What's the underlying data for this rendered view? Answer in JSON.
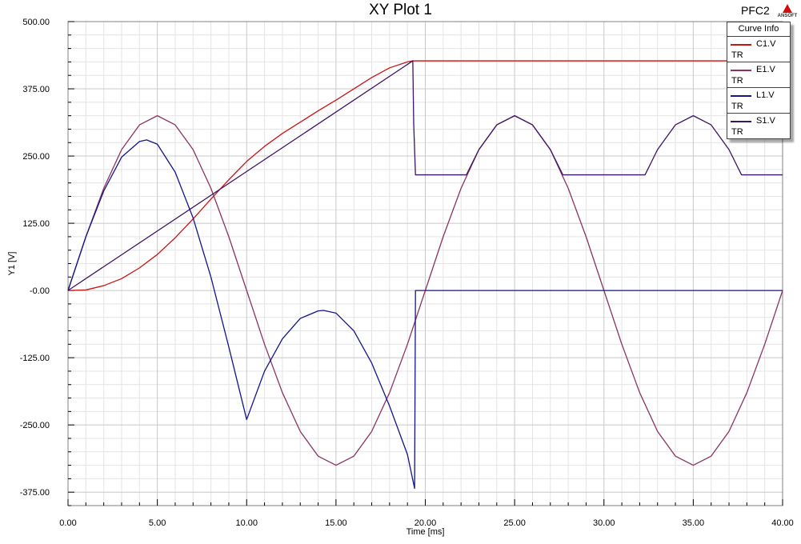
{
  "window": {
    "project": "PFC2",
    "logo_text": "ANSOFT"
  },
  "chart_data": {
    "type": "line",
    "title": "XY Plot 1",
    "xlabel": "Time [ms]",
    "ylabel": "Y1 [V]",
    "xlim": [
      0,
      40
    ],
    "ylim": [
      -400,
      500
    ],
    "x_ticks": [
      0,
      5,
      10,
      15,
      20,
      25,
      30,
      35,
      40
    ],
    "x_tick_labels": [
      "0.00",
      "5.00",
      "10.00",
      "15.00",
      "20.00",
      "25.00",
      "30.00",
      "35.00",
      "40.00"
    ],
    "y_ticks": [
      500,
      375,
      250,
      125,
      0,
      -125,
      -250,
      -375
    ],
    "y_tick_labels": [
      "500.00",
      "375.00",
      "250.00",
      "125.00",
      "-0.00",
      "-125.00",
      "-250.00",
      "-375.00"
    ],
    "grid": true,
    "legend": {
      "title": "Curve Info",
      "placement": "top-right"
    },
    "series": [
      {
        "name": "C1.V",
        "sweep": "TR",
        "color": "#c81414",
        "x": [
          0,
          1,
          2,
          3,
          4,
          5,
          6,
          7,
          8,
          9,
          10,
          11,
          12,
          13,
          14,
          15,
          16,
          17,
          18,
          19,
          19.3,
          20,
          25,
          30,
          35,
          40
        ],
        "y": [
          0,
          1,
          9,
          22,
          42,
          67,
          98,
          133,
          170,
          206,
          240,
          268,
          292,
          313,
          334,
          354,
          375,
          396,
          414,
          425,
          427,
          427,
          427,
          427,
          427,
          427
        ]
      },
      {
        "name": "E1.V",
        "sweep": "TR",
        "color": "#8a3264",
        "x": [
          0,
          1,
          2,
          3,
          4,
          5,
          6,
          7,
          8,
          9,
          10,
          11,
          12,
          13,
          14,
          15,
          16,
          17,
          18,
          19,
          20,
          21,
          22,
          23,
          24,
          25,
          26,
          27,
          28,
          29,
          30,
          31,
          32,
          33,
          34,
          35,
          36,
          37,
          38,
          39,
          40
        ],
        "y": [
          0,
          100,
          190,
          262,
          308,
          325,
          308,
          262,
          190,
          100,
          0,
          -100,
          -190,
          -262,
          -308,
          -325,
          -308,
          -262,
          -190,
          -100,
          0,
          100,
          190,
          262,
          308,
          325,
          308,
          262,
          190,
          100,
          0,
          -100,
          -190,
          -262,
          -308,
          -325,
          -308,
          -262,
          -190,
          -100,
          0
        ]
      },
      {
        "name": "L1.V",
        "sweep": "TR",
        "color": "#14148c",
        "x": [
          0,
          1,
          2,
          3,
          4,
          4.4,
          5,
          6,
          7,
          8,
          9,
          10,
          11,
          12,
          13,
          14,
          14.3,
          15,
          16,
          17,
          18,
          19,
          19.4,
          19.45,
          20,
          25,
          30,
          35,
          40
        ],
        "y": [
          0,
          100,
          185,
          248,
          277,
          280,
          272,
          220,
          135,
          25,
          -105,
          -240,
          -150,
          -90,
          -52,
          -38,
          -37,
          -42,
          -75,
          -135,
          -215,
          -305,
          -368,
          0,
          0,
          0,
          0,
          0,
          0
        ]
      },
      {
        "name": "S1.V",
        "sweep": "TR",
        "color": "#3c1464",
        "x": [
          0,
          19.3,
          19.35,
          19.45,
          22.3,
          23,
          24,
          25,
          26,
          27,
          27.7,
          32.3,
          33,
          34,
          35,
          36,
          37,
          37.7,
          40
        ],
        "y": [
          0,
          427,
          310,
          215,
          215,
          262,
          308,
          325,
          308,
          262,
          215,
          215,
          262,
          308,
          325,
          308,
          262,
          215,
          215
        ]
      }
    ]
  }
}
